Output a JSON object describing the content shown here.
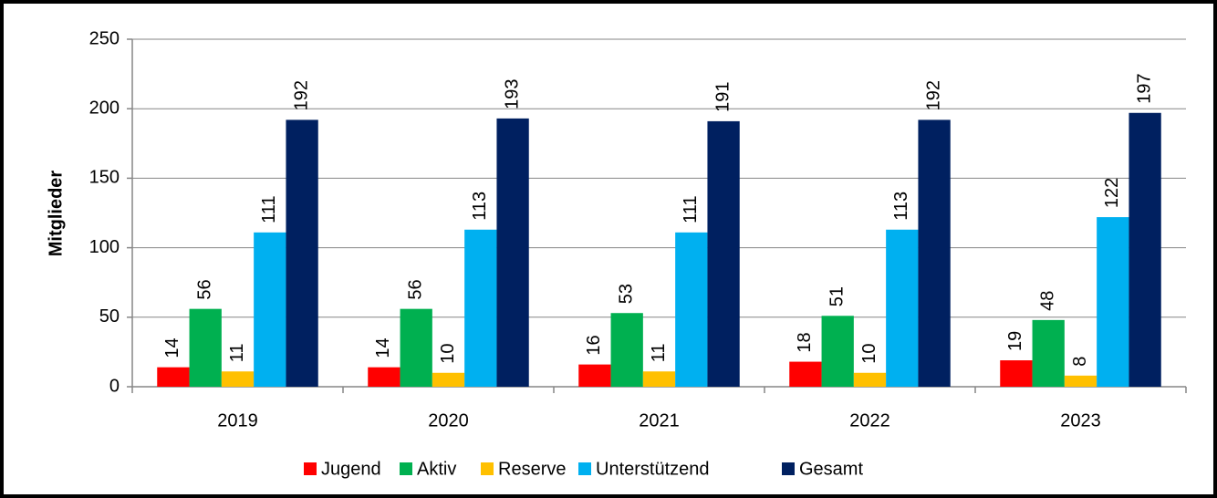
{
  "chart_data": {
    "type": "bar",
    "y_label": "Mitglieder",
    "categories": [
      "2019",
      "2020",
      "2021",
      "2022",
      "2023"
    ],
    "series": [
      {
        "name": "Jugend",
        "color": "#ff0000",
        "values": [
          14,
          14,
          16,
          18,
          19
        ]
      },
      {
        "name": "Aktiv",
        "color": "#00b050",
        "values": [
          56,
          56,
          53,
          51,
          48
        ]
      },
      {
        "name": "Reserve",
        "color": "#ffc000",
        "values": [
          11,
          10,
          11,
          10,
          8
        ]
      },
      {
        "name": "Unterstützend",
        "color": "#00b0f0",
        "values": [
          111,
          113,
          111,
          113,
          122
        ]
      },
      {
        "name": "Gesamt",
        "color": "#002060",
        "values": [
          192,
          193,
          191,
          192,
          197
        ]
      }
    ],
    "ylim": [
      0,
      250
    ],
    "yticks": [
      0,
      50,
      100,
      150,
      200,
      250
    ],
    "grid": true,
    "legend": "bottom"
  }
}
